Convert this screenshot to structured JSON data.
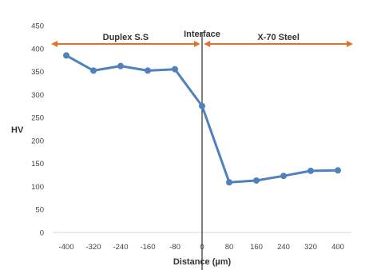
{
  "chart_data": {
    "type": "line",
    "title": "",
    "xlabel": "Distance (µm)",
    "ylabel": "HV",
    "x": [
      -400,
      -320,
      -240,
      -160,
      -80,
      0,
      80,
      160,
      240,
      320,
      400
    ],
    "series": [
      {
        "values": [
          385,
          352,
          362,
          352,
          355,
          275,
          109,
          113,
          123,
          134,
          135
        ],
        "color": "#4f81bd"
      }
    ],
    "xlim": [
      -440,
      440
    ],
    "ylim": [
      0,
      450
    ],
    "xticks": [
      -400,
      -320,
      -240,
      -160,
      -80,
      0,
      80,
      160,
      240,
      320,
      400
    ],
    "yticks": [
      0,
      50,
      100,
      150,
      200,
      250,
      300,
      350,
      400,
      450
    ],
    "grid": false,
    "interface_line_x": 0,
    "regions": [
      {
        "label": "Duplex S.S",
        "from": -440,
        "to": -10,
        "y": 410
      },
      {
        "label": "X-70 Steel",
        "from": 10,
        "to": 440,
        "y": 410
      }
    ],
    "interface_label": "Interface",
    "arrow_color": "#e0702b",
    "axis_color": "#d9d9d9"
  }
}
